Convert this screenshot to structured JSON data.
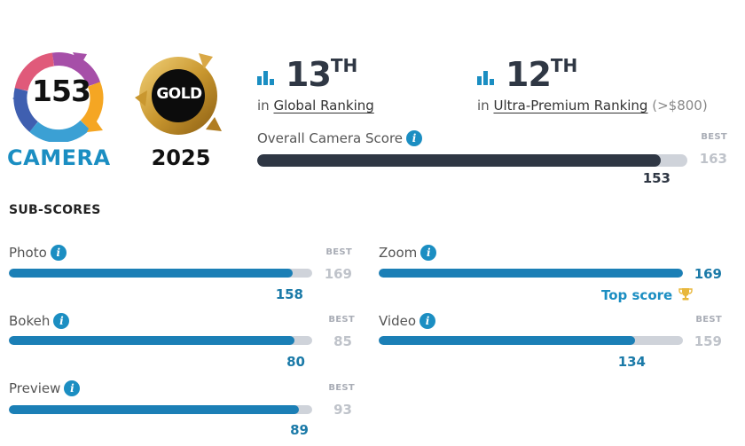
{
  "badge": {
    "score": "153",
    "label": "CAMERA",
    "award": "GOLD",
    "year": "2025"
  },
  "rankings": {
    "global": {
      "number": "13",
      "suffix": "TH",
      "prefix": "in",
      "link": "Global Ranking"
    },
    "premium": {
      "number": "12",
      "suffix": "TH",
      "prefix": "in",
      "link": "Ultra-Premium Ranking",
      "extra": "(>$800)"
    }
  },
  "overall": {
    "label": "Overall Camera Score",
    "best_caption": "BEST",
    "best": "163",
    "score": "153",
    "fraction": 0.9387
  },
  "subscores": {
    "heading": "SUB-SCORES",
    "best_caption": "BEST",
    "photo": {
      "label": "Photo",
      "score": "158",
      "best": "169",
      "fraction": 0.935
    },
    "bokeh": {
      "label": "Bokeh",
      "score": "80",
      "best": "85",
      "fraction": 0.941
    },
    "preview": {
      "label": "Preview",
      "score": "89",
      "best": "93",
      "fraction": 0.957
    },
    "zoom": {
      "label": "Zoom",
      "score": "169",
      "best": "169",
      "fraction": 1.0,
      "top_label": "Top score"
    },
    "video": {
      "label": "Video",
      "score": "134",
      "best": "159",
      "fraction": 0.843
    }
  },
  "colors": {
    "accent": "#1b8ec2",
    "bar_sub": "#1b7fb6",
    "bar_overall": "#2f3744",
    "track": "#cfd3da",
    "gold": "#c9972f"
  },
  "icons": {
    "ranking": "bar-chart-icon",
    "info": "info-icon",
    "trophy": "trophy-icon"
  }
}
